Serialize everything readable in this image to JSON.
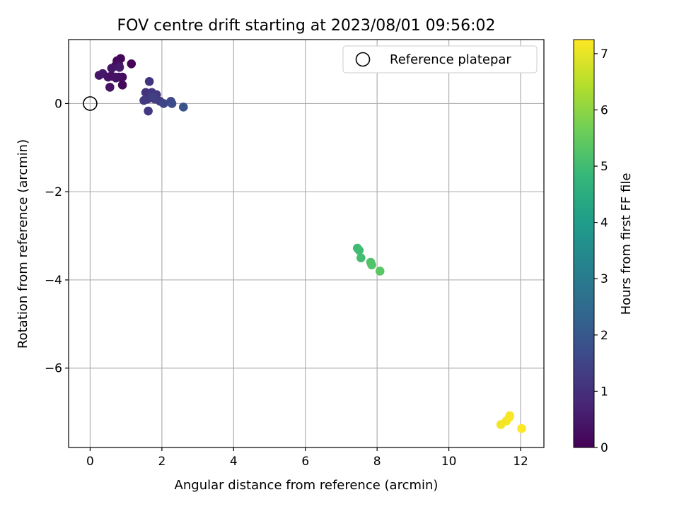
{
  "chart_data": {
    "type": "scatter",
    "title": "FOV centre drift starting at 2023/08/01 09:56:02",
    "xlabel": "Angular distance from reference (arcmin)",
    "ylabel": "Rotation from reference (arcmin)",
    "xlim": [
      -0.6,
      12.65
    ],
    "ylim": [
      -7.8,
      1.45
    ],
    "xticks": [
      0,
      2,
      4,
      6,
      8,
      10,
      12
    ],
    "yticks": [
      0,
      -2,
      -4,
      -6
    ],
    "xtick_labels": [
      "0",
      "2",
      "4",
      "6",
      "8",
      "10",
      "12"
    ],
    "ytick_labels": [
      "0",
      "−2",
      "−4",
      "−6"
    ],
    "grid": true,
    "legend": {
      "placement": "top-right",
      "entries": [
        "Reference platepar"
      ]
    },
    "reference_point": {
      "x": 0,
      "y": 0
    },
    "colorbar": {
      "label": "Hours from first FF file",
      "colormap": "viridis",
      "range": [
        0,
        7.25
      ],
      "ticks": [
        0,
        1,
        2,
        3,
        4,
        5,
        6,
        7
      ],
      "tick_labels": [
        "0",
        "1",
        "2",
        "3",
        "4",
        "5",
        "6",
        "7"
      ],
      "stops": [
        "#440154",
        "#482878",
        "#3e4989",
        "#31688e",
        "#26828e",
        "#1f9e89",
        "#35b779",
        "#6ece58",
        "#b5de2b",
        "#fde725"
      ]
    },
    "series": [
      {
        "x": [
          1.15,
          0.85,
          0.75,
          0.7,
          0.8,
          0.6,
          0.9,
          0.55,
          0.8,
          0.25,
          0.35,
          0.5,
          0.7,
          0.6,
          0.9,
          0.58,
          0.72,
          0.82,
          1.65,
          1.55,
          1.72,
          1.85,
          1.6,
          1.8,
          1.5,
          1.95,
          1.75,
          1.62,
          2.05,
          2.25,
          2.28,
          2.6,
          7.45,
          7.5,
          7.55,
          7.82,
          7.85,
          8.08,
          11.45,
          11.6,
          11.7,
          11.68,
          12.03
        ],
        "y": [
          0.9,
          1.02,
          0.97,
          0.85,
          0.6,
          0.62,
          0.42,
          0.37,
          0.88,
          0.64,
          0.68,
          0.6,
          0.6,
          0.8,
          0.6,
          0.62,
          0.58,
          0.82,
          0.5,
          0.25,
          0.25,
          0.2,
          0.1,
          0.1,
          0.07,
          0.05,
          0.15,
          -0.17,
          0.0,
          0.05,
          0.0,
          -0.08,
          -3.28,
          -3.33,
          -3.5,
          -3.6,
          -3.66,
          -3.8,
          -7.28,
          -7.2,
          -7.08,
          -7.12,
          -7.37
        ],
        "hours": [
          0.05,
          0.1,
          0.15,
          0.2,
          0.22,
          0.28,
          0.12,
          0.35,
          0.3,
          0.45,
          0.48,
          0.4,
          0.38,
          0.42,
          0.25,
          0.33,
          0.36,
          0.5,
          1.1,
          1.05,
          1.15,
          1.2,
          1.12,
          1.3,
          1.25,
          1.3,
          1.4,
          1.25,
          1.5,
          1.6,
          1.7,
          1.9,
          4.95,
          5.0,
          5.05,
          5.2,
          5.25,
          5.35,
          7.1,
          7.15,
          7.18,
          7.2,
          7.25
        ]
      }
    ]
  }
}
